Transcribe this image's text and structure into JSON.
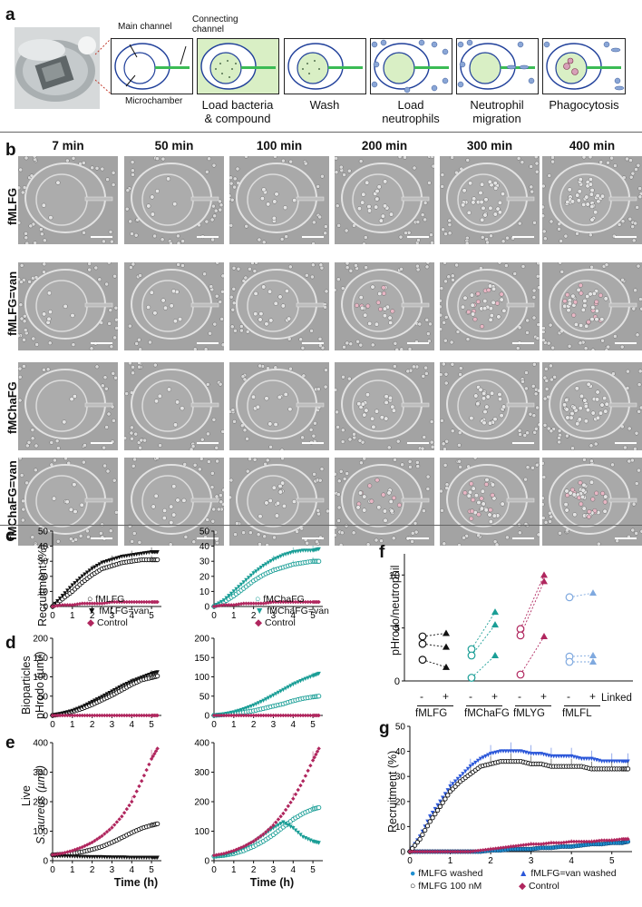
{
  "panel_letters": {
    "a": "a",
    "b": "b",
    "c": "c",
    "d": "d",
    "e": "e",
    "f": "f",
    "g": "g"
  },
  "panel_a": {
    "callouts": {
      "main_channel": "Main channel",
      "connecting_channel": "Connecting\nchannel",
      "microchamber": "Microchamber"
    },
    "steps": [
      "Load bacteria\n& compound",
      "Wash",
      "Load\nneutrophils",
      "Neutrophil\nmigration",
      "Phagocytosis"
    ],
    "colors": {
      "chamber_outline": "#1f3f9a",
      "bacteria_fill": "#d9efc5",
      "channel": "#3bbb55",
      "neutrophil": "#8aa6d6"
    }
  },
  "panel_b": {
    "time_headers": [
      "7 min",
      "50 min",
      "100 min",
      "200 min",
      "300 min",
      "400 min"
    ],
    "row_labels": [
      "fMLFG",
      "fMLFG=van",
      "fMChaFG",
      "fMChaFG=van"
    ]
  },
  "axes": {
    "x_label": "Time (h)",
    "c_ylabel": "Recruitment (%)",
    "d_ylabel": "Bioparticles\npHrodo (µm²)",
    "e_ylabel_1": "Live",
    "e_ylabel_2": "S. aureus (µm²)",
    "f_ylabel": "pHrodo/neutrophil",
    "g_ylabel": "Recruitment (%)",
    "f_linked": "Linked",
    "f_minus": "-",
    "f_plus": "+",
    "f_groups": [
      "fMLFG",
      "fMChaFG",
      "fMLYG",
      "fMLFL"
    ]
  },
  "legends": {
    "c_left": [
      "fMLFG",
      "fMLFG=van",
      "Control"
    ],
    "c_right": [
      "fMChaFG",
      "fMChaFG=van",
      "Control"
    ],
    "g": [
      "fMLFG washed",
      "fMLFG=van washed",
      "fMLFG 100 nM",
      "Control"
    ]
  },
  "colors": {
    "black": "#111111",
    "teal": "#1a9e96",
    "magenta": "#b0265e",
    "blue": "#2b57d9",
    "light_blue": "#7fa9df"
  },
  "chart_data": [
    {
      "id": "c-left",
      "type": "line",
      "title": "",
      "xlabel": "",
      "ylabel": "Recruitment (%)",
      "xlim": [
        0,
        5.5
      ],
      "ylim": [
        0,
        50
      ],
      "xticks": [
        0,
        1,
        2,
        3,
        4,
        5
      ],
      "yticks": [
        0,
        10,
        20,
        30,
        40,
        50
      ],
      "x": [
        0,
        0.5,
        1,
        1.5,
        2,
        2.5,
        3,
        3.5,
        4,
        4.5,
        5,
        5.3
      ],
      "series": [
        {
          "name": "fMLFG",
          "style": "open-circle",
          "color": "#111111",
          "values": [
            0,
            5,
            10,
            16,
            21,
            25,
            27,
            29,
            30,
            31,
            31,
            31
          ]
        },
        {
          "name": "fMLFG=van",
          "style": "filled-triangle",
          "color": "#111111",
          "values": [
            0,
            7,
            14,
            20,
            25,
            29,
            31,
            33,
            34,
            35,
            36,
            36
          ]
        },
        {
          "name": "Control",
          "style": "diamond",
          "color": "#b0265e",
          "values": [
            0,
            1,
            1,
            2,
            2,
            2,
            3,
            3,
            3,
            3,
            3,
            3
          ]
        }
      ]
    },
    {
      "id": "c-right",
      "type": "line",
      "title": "",
      "xlabel": "",
      "ylabel": "",
      "xlim": [
        0,
        5.5
      ],
      "ylim": [
        0,
        50
      ],
      "xticks": [
        0,
        1,
        2,
        3,
        4,
        5
      ],
      "yticks": [
        0,
        10,
        20,
        30,
        40,
        50
      ],
      "x": [
        0,
        0.5,
        1,
        1.5,
        2,
        2.5,
        3,
        3.5,
        4,
        4.5,
        5,
        5.3
      ],
      "series": [
        {
          "name": "fMChaFG",
          "style": "open-circle",
          "color": "#1a9e96",
          "values": [
            0,
            3,
            7,
            12,
            17,
            21,
            24,
            26,
            28,
            29,
            30,
            30
          ]
        },
        {
          "name": "fMChaFG=van",
          "style": "filled-triangle",
          "color": "#1a9e96",
          "values": [
            0,
            4,
            10,
            16,
            22,
            27,
            31,
            34,
            36,
            37,
            37,
            38
          ]
        },
        {
          "name": "Control",
          "style": "diamond",
          "color": "#b0265e",
          "values": [
            0,
            1,
            1,
            2,
            2,
            2,
            3,
            3,
            3,
            3,
            3,
            3
          ]
        }
      ]
    },
    {
      "id": "d-left",
      "type": "line",
      "title": "",
      "xlabel": "",
      "ylabel": "Bioparticles pHrodo (µm²)",
      "xlim": [
        0,
        5.5
      ],
      "ylim": [
        0,
        200
      ],
      "xticks": [
        0,
        1,
        2,
        3,
        4,
        5
      ],
      "yticks": [
        0,
        50,
        100,
        150,
        200
      ],
      "x": [
        0,
        0.5,
        1,
        1.5,
        2,
        2.5,
        3,
        3.5,
        4,
        4.5,
        5,
        5.3
      ],
      "series": [
        {
          "name": "fMLFG",
          "style": "open-circle",
          "color": "#111111",
          "values": [
            0,
            4,
            10,
            18,
            28,
            40,
            52,
            66,
            80,
            92,
            98,
            102
          ]
        },
        {
          "name": "fMLFG=van",
          "style": "filled-triangle",
          "color": "#111111",
          "values": [
            0,
            5,
            12,
            22,
            35,
            48,
            62,
            76,
            88,
            98,
            108,
            112
          ]
        },
        {
          "name": "Control",
          "style": "diamond",
          "color": "#b0265e",
          "values": [
            0,
            0,
            0,
            0,
            0,
            0,
            0,
            0,
            0,
            0,
            0,
            0
          ]
        }
      ]
    },
    {
      "id": "d-right",
      "type": "line",
      "title": "",
      "xlabel": "",
      "ylabel": "",
      "xlim": [
        0,
        5.5
      ],
      "ylim": [
        0,
        200
      ],
      "xticks": [
        0,
        1,
        2,
        3,
        4,
        5
      ],
      "yticks": [
        0,
        50,
        100,
        150,
        200
      ],
      "x": [
        0,
        0.5,
        1,
        1.5,
        2,
        2.5,
        3,
        3.5,
        4,
        4.5,
        5,
        5.3
      ],
      "series": [
        {
          "name": "fMChaFG",
          "style": "open-circle",
          "color": "#1a9e96",
          "values": [
            0,
            2,
            5,
            8,
            12,
            18,
            24,
            30,
            38,
            44,
            48,
            50
          ]
        },
        {
          "name": "fMChaFG=van",
          "style": "filled-triangle",
          "color": "#1a9e96",
          "values": [
            0,
            3,
            8,
            16,
            26,
            38,
            52,
            66,
            80,
            92,
            102,
            108
          ]
        },
        {
          "name": "Control",
          "style": "diamond",
          "color": "#b0265e",
          "values": [
            0,
            0,
            0,
            0,
            0,
            0,
            0,
            0,
            0,
            0,
            0,
            0
          ]
        }
      ]
    },
    {
      "id": "e-left",
      "type": "line",
      "title": "",
      "xlabel": "Time (h)",
      "ylabel": "Live S. aureus (µm²)",
      "xlim": [
        0,
        5.5
      ],
      "ylim": [
        0,
        400
      ],
      "xticks": [
        0,
        1,
        2,
        3,
        4,
        5
      ],
      "yticks": [
        0,
        100,
        200,
        300,
        400
      ],
      "x": [
        0,
        0.5,
        1,
        1.5,
        2,
        2.5,
        3,
        3.5,
        4,
        4.5,
        5,
        5.3
      ],
      "series": [
        {
          "name": "fMLFG",
          "style": "open-circle",
          "color": "#111111",
          "values": [
            20,
            22,
            25,
            30,
            38,
            48,
            62,
            78,
            95,
            110,
            120,
            125
          ]
        },
        {
          "name": "fMLFG=van",
          "style": "filled-triangle",
          "color": "#111111",
          "values": [
            15,
            15,
            14,
            13,
            12,
            12,
            11,
            11,
            10,
            10,
            10,
            10
          ]
        },
        {
          "name": "Control",
          "style": "diamond",
          "color": "#b0265e",
          "values": [
            20,
            25,
            34,
            46,
            62,
            84,
            112,
            150,
            200,
            270,
            345,
            380
          ]
        }
      ]
    },
    {
      "id": "e-right",
      "type": "line",
      "title": "",
      "xlabel": "Time (h)",
      "ylabel": "",
      "xlim": [
        0,
        5.5
      ],
      "ylim": [
        0,
        400
      ],
      "xticks": [
        0,
        1,
        2,
        3,
        4,
        5
      ],
      "yticks": [
        0,
        100,
        200,
        300,
        400
      ],
      "x": [
        0,
        0.5,
        1,
        1.5,
        2,
        2.5,
        3,
        3.5,
        4,
        4.5,
        5,
        5.3
      ],
      "series": [
        {
          "name": "fMChaFG",
          "style": "open-circle",
          "color": "#1a9e96",
          "values": [
            15,
            18,
            24,
            34,
            48,
            66,
            88,
            114,
            140,
            160,
            175,
            180
          ]
        },
        {
          "name": "fMChaFG=van",
          "style": "filled-triangle",
          "color": "#1a9e96",
          "values": [
            12,
            16,
            26,
            42,
            62,
            86,
            110,
            130,
            110,
            80,
            65,
            60
          ]
        },
        {
          "name": "Control",
          "style": "diamond",
          "color": "#b0265e",
          "values": [
            18,
            24,
            34,
            48,
            66,
            90,
            120,
            160,
            210,
            270,
            340,
            380
          ]
        }
      ]
    },
    {
      "id": "f",
      "type": "scatter",
      "title": "",
      "xlabel": "Linked",
      "ylabel": "pHrodo/neutrophil",
      "ylim": [
        0,
        12
      ],
      "yticks": [
        0,
        5,
        10
      ],
      "groups": [
        {
          "name": "fMLFG",
          "color": "#111111",
          "minus": [
            4.2,
            3.5,
            2.0
          ],
          "plus": [
            4.5,
            3.2,
            1.3
          ]
        },
        {
          "name": "fMChaFG",
          "color": "#1a9e96",
          "minus": [
            3.0,
            2.4,
            0.3
          ],
          "plus": [
            6.5,
            5.3,
            2.4
          ]
        },
        {
          "name": "fMLYG",
          "color": "#b0265e",
          "minus": [
            4.9,
            4.3,
            0.6
          ],
          "plus": [
            10.0,
            9.4,
            4.2
          ]
        },
        {
          "name": "fMLFL",
          "color": "#7fa9df",
          "minus": [
            7.9,
            2.3,
            1.8
          ],
          "plus": [
            8.3,
            2.4,
            1.8
          ]
        }
      ]
    },
    {
      "id": "g",
      "type": "line",
      "title": "",
      "xlabel": "Time (h)",
      "ylabel": "Recruitment (%)",
      "xlim": [
        0,
        5.5
      ],
      "ylim": [
        0,
        50
      ],
      "xticks": [
        0,
        1,
        2,
        3,
        4,
        5
      ],
      "yticks": [
        0,
        10,
        20,
        30,
        40,
        50
      ],
      "x": [
        0,
        0.25,
        0.5,
        0.75,
        1,
        1.25,
        1.5,
        1.75,
        2,
        2.25,
        2.5,
        2.75,
        3,
        3.25,
        3.5,
        3.75,
        4,
        4.25,
        4.5,
        4.75,
        5,
        5.25,
        5.4
      ],
      "series": [
        {
          "name": "fMLFG washed",
          "style": "filled-circle",
          "color": "#1f8fd0",
          "values": [
            0,
            0,
            0,
            0,
            0,
            0,
            0,
            0,
            0.5,
            0.5,
            1,
            1,
            1,
            1.5,
            1.5,
            2,
            2,
            2.5,
            3,
            3,
            3.5,
            3.5,
            4
          ]
        },
        {
          "name": "fMLFG=van washed",
          "style": "filled-triangle",
          "color": "#2b57d9",
          "values": [
            0,
            6,
            14,
            20,
            26,
            30,
            34,
            37,
            39,
            40,
            40,
            40,
            39,
            39,
            38,
            38,
            38,
            37,
            37,
            36,
            36,
            36,
            36
          ]
        },
        {
          "name": "fMLFG 100 nM",
          "style": "open-circle",
          "color": "#111111",
          "values": [
            0,
            5,
            12,
            18,
            24,
            28,
            31,
            34,
            35,
            36,
            36,
            36,
            35,
            35,
            34,
            34,
            34,
            34,
            33,
            33,
            33,
            33,
            33
          ]
        },
        {
          "name": "Control",
          "style": "diamond",
          "color": "#b0265e",
          "values": [
            0,
            0,
            0,
            0,
            0,
            0,
            0,
            0.5,
            1,
            1.5,
            2,
            2.5,
            3,
            3,
            3.5,
            3.5,
            4,
            4,
            4,
            4.5,
            4.5,
            5,
            5
          ]
        }
      ]
    }
  ]
}
